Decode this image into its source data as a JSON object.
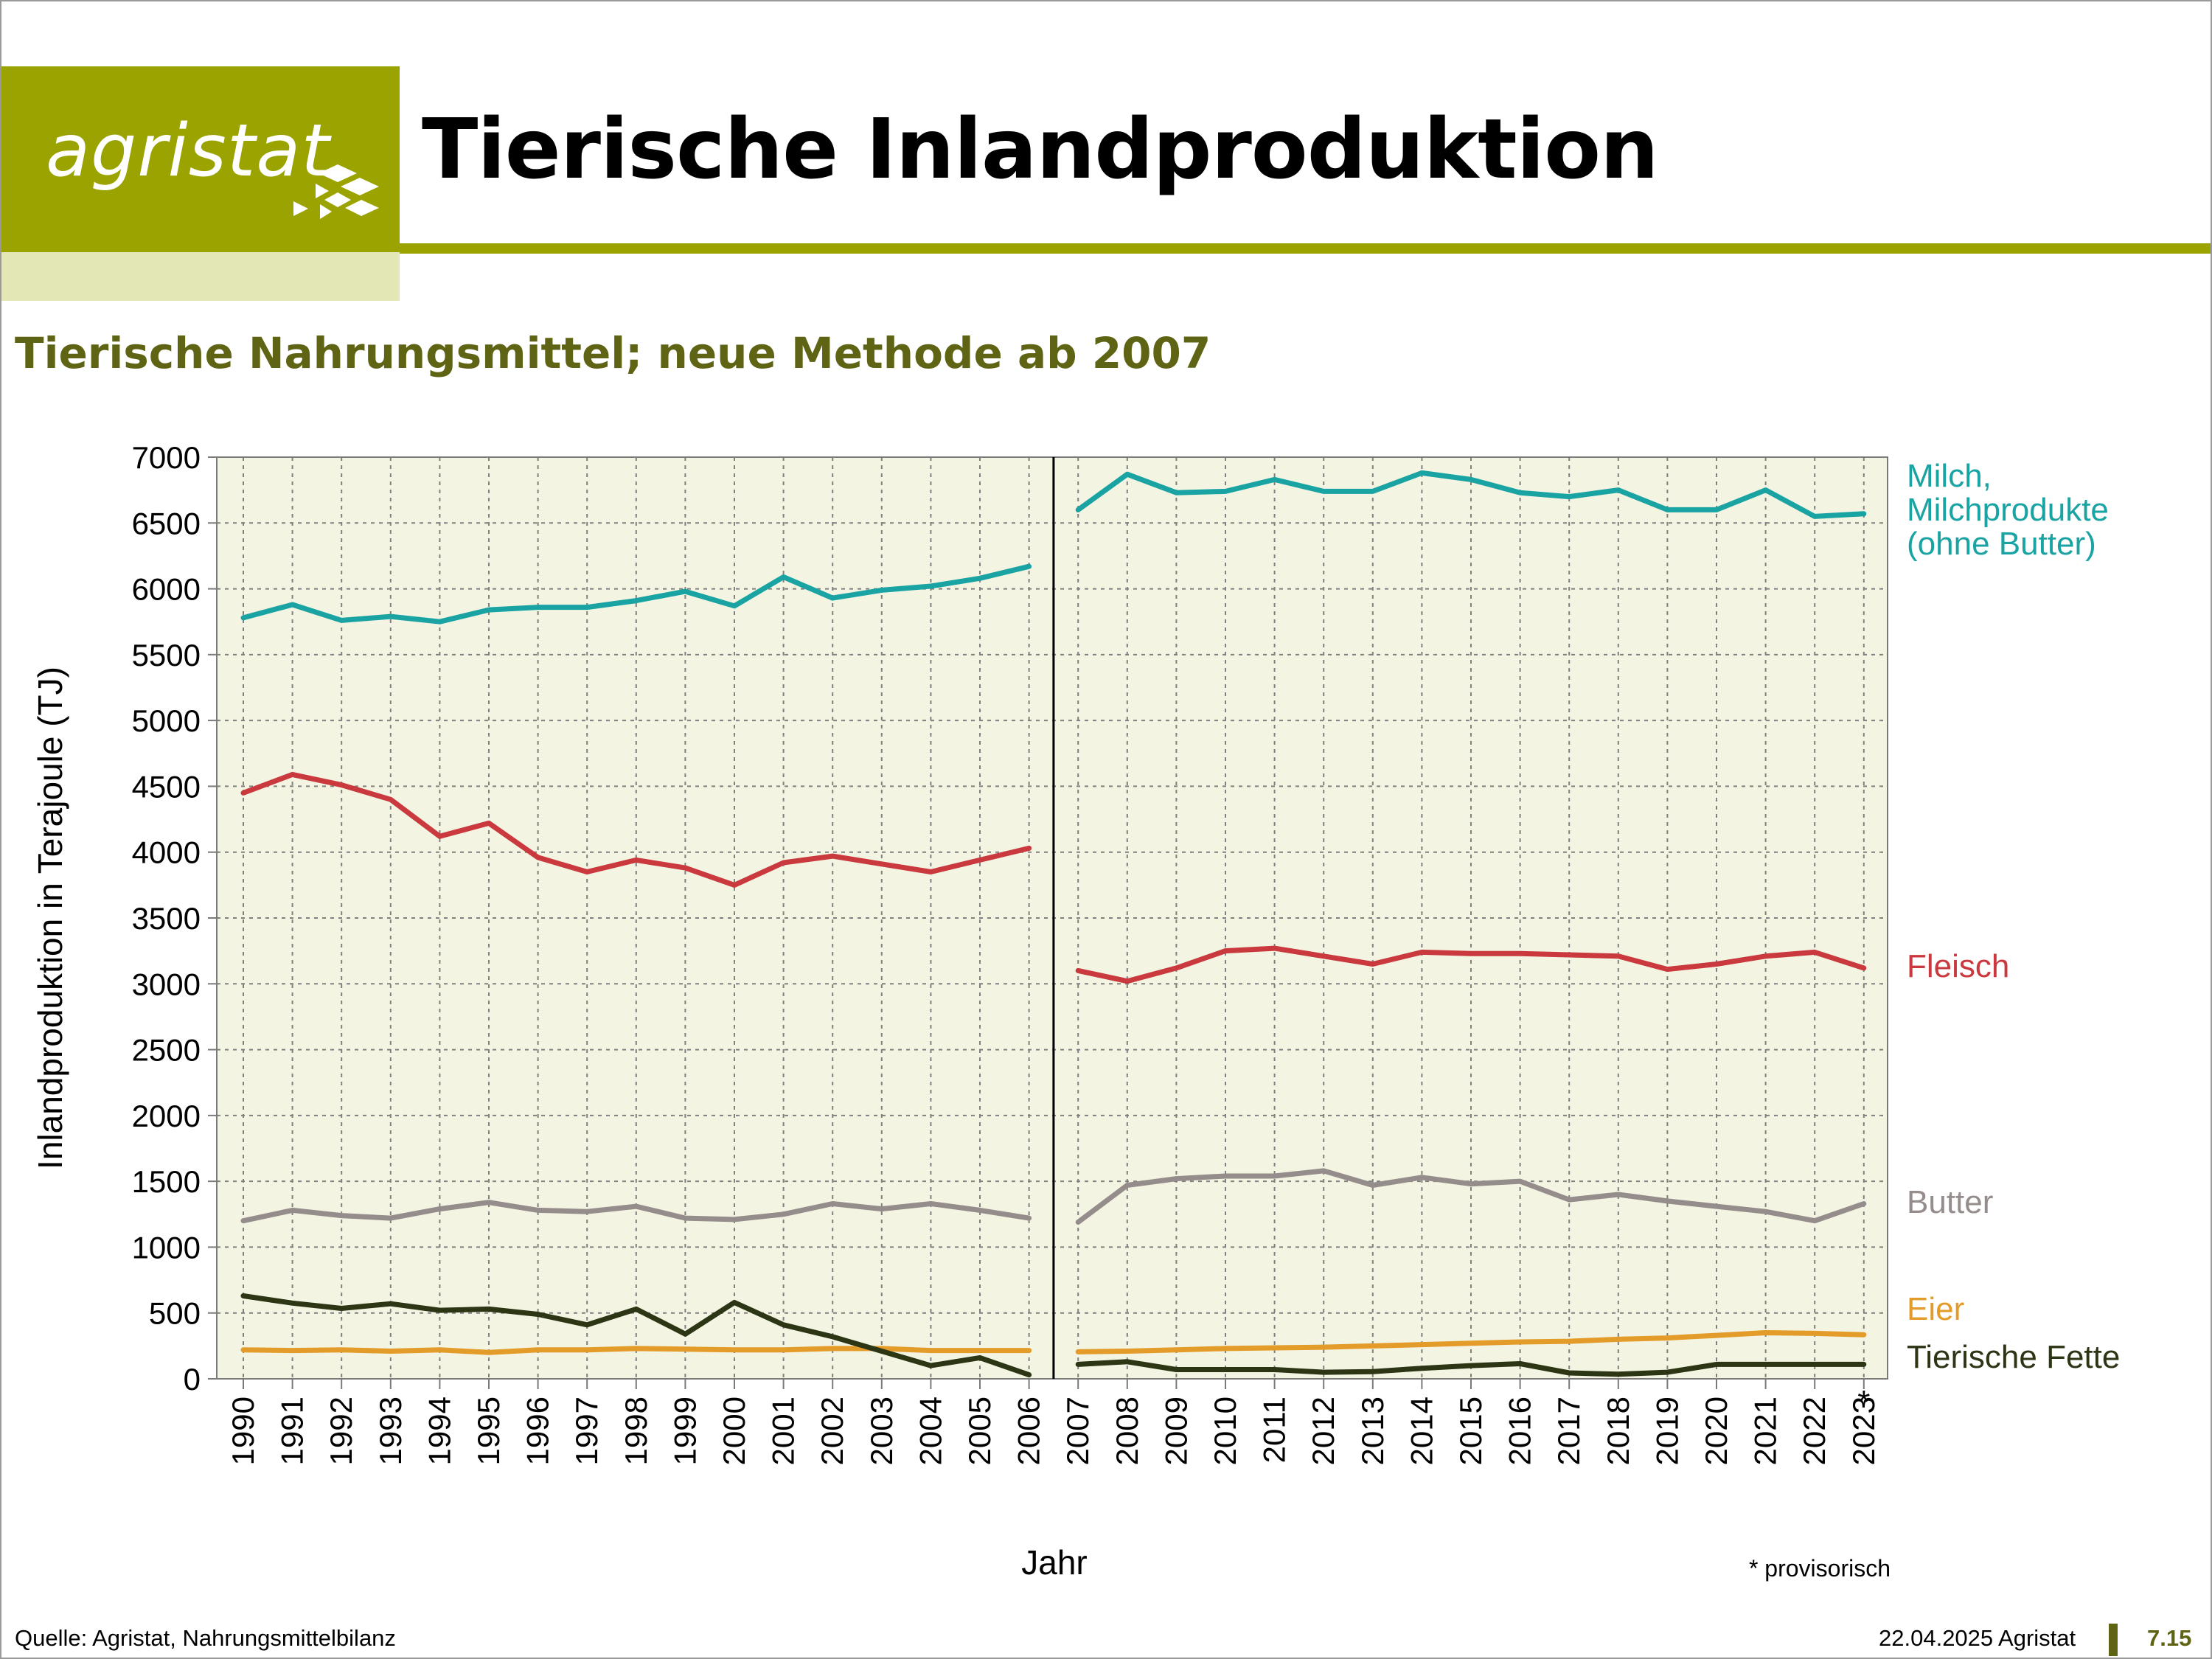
{
  "header": {
    "logo_text": "agristat",
    "title": "Tierische Inlandproduktion"
  },
  "subtitle": "Tierische Nahrungsmittel; neue Methode ab 2007",
  "footer": {
    "source": "Quelle: Agristat, Nahrungsmittelbilanz",
    "date": "22.04.2025 Agristat",
    "page_number": "7.15"
  },
  "colors": {
    "brand_green": "#9aa300",
    "brand_light": "#e3e6b5",
    "subtitle_olive": "#5e6414",
    "plot_bg": "#f3f4e1"
  },
  "chart_data": {
    "type": "line",
    "title": "Tierische Nahrungsmittel; neue Methode ab 2007",
    "xlabel": "Jahr",
    "ylabel": "Inlandproduktion in Terajoule (TJ)",
    "ylim": [
      0,
      7000
    ],
    "yticks": [
      0,
      500,
      1000,
      1500,
      2000,
      2500,
      3000,
      3500,
      4000,
      4500,
      5000,
      5500,
      6000,
      6500,
      7000
    ],
    "grid": true,
    "legend": "right, labels next to line ends",
    "method_break_after": "2006",
    "footnote": "* provisorisch",
    "provisional_marker": "*",
    "categories": [
      "1990",
      "1991",
      "1992",
      "1993",
      "1994",
      "1995",
      "1996",
      "1997",
      "1998",
      "1999",
      "2000",
      "2001",
      "2002",
      "2003",
      "2004",
      "2005",
      "2006",
      "2007",
      "2008",
      "2009",
      "2010",
      "2011",
      "2012",
      "2013",
      "2014",
      "2015",
      "2016",
      "2017",
      "2018",
      "2019",
      "2020",
      "2021",
      "2022",
      "2023"
    ],
    "series": [
      {
        "name": "Milch, Milchprodukte (ohne Butter)",
        "label_lines": [
          "Milch,",
          "Milchprodukte",
          "(ohne Butter)"
        ],
        "color": "#1aa3a3",
        "values": [
          5780,
          5880,
          5760,
          5790,
          5750,
          5840,
          5860,
          5860,
          5910,
          5980,
          5870,
          6090,
          5930,
          5990,
          6020,
          6080,
          6170,
          6600,
          6870,
          6730,
          6740,
          6830,
          6740,
          6740,
          6880,
          6830,
          6730,
          6700,
          6750,
          6600,
          6600,
          6750,
          6550,
          6570
        ]
      },
      {
        "name": "Fleisch",
        "label_lines": [
          "Fleisch"
        ],
        "color": "#c9393e",
        "values": [
          4450,
          4590,
          4510,
          4400,
          4120,
          4220,
          3960,
          3850,
          3940,
          3880,
          3750,
          3920,
          3970,
          3910,
          3850,
          3940,
          4030,
          3100,
          3020,
          3120,
          3250,
          3270,
          3210,
          3150,
          3240,
          3230,
          3230,
          3220,
          3210,
          3110,
          3150,
          3210,
          3240,
          3120
        ]
      },
      {
        "name": "Butter",
        "label_lines": [
          "Butter"
        ],
        "color": "#958c8c",
        "values": [
          1200,
          1280,
          1240,
          1220,
          1290,
          1340,
          1280,
          1270,
          1310,
          1220,
          1210,
          1250,
          1330,
          1290,
          1330,
          1280,
          1220,
          1190,
          1470,
          1520,
          1540,
          1540,
          1580,
          1470,
          1530,
          1480,
          1500,
          1360,
          1400,
          1350,
          1310,
          1270,
          1200,
          1330
        ]
      },
      {
        "name": "Eier",
        "label_lines": [
          "Eier"
        ],
        "color": "#e39b2a",
        "values": [
          220,
          215,
          220,
          210,
          220,
          200,
          220,
          220,
          230,
          225,
          220,
          220,
          230,
          230,
          215,
          215,
          215,
          205,
          210,
          220,
          230,
          235,
          240,
          250,
          260,
          270,
          280,
          285,
          300,
          310,
          330,
          350,
          345,
          335
        ]
      },
      {
        "name": "Tierische Fette",
        "label_lines": [
          "Tierische Fette"
        ],
        "color": "#2c3514",
        "values": [
          630,
          575,
          535,
          570,
          520,
          530,
          490,
          410,
          530,
          340,
          580,
          410,
          320,
          210,
          100,
          160,
          30,
          110,
          130,
          70,
          70,
          70,
          50,
          55,
          80,
          100,
          115,
          45,
          35,
          50,
          110,
          110,
          110,
          110
        ]
      }
    ]
  }
}
